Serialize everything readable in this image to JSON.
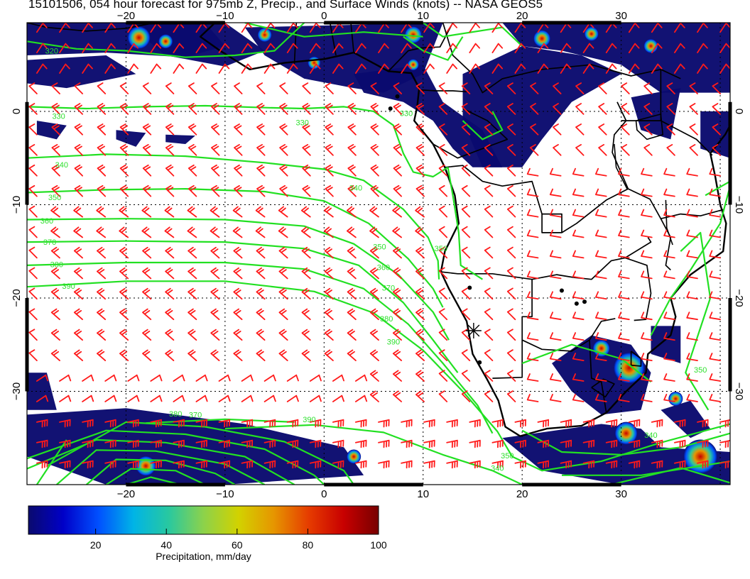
{
  "title": "15101506, 054 hour forecast for 975mb Z, Precip., and Surface Winds (knots) -- NASA GEOS5",
  "map": {
    "lon_range": [
      -30,
      41
    ],
    "lat_range": [
      -40,
      9.5
    ],
    "lon_ticks": [
      -20,
      -10,
      0,
      10,
      20,
      30
    ],
    "lon_tick_labels": [
      "−20",
      "−10",
      "0",
      "10",
      "20",
      "30"
    ],
    "lat_ticks": [
      0,
      -10,
      -20,
      -30
    ],
    "lat_tick_labels": [
      "0",
      "−10",
      "−20",
      "−30"
    ],
    "grid": true,
    "marker": {
      "name": "station-marker",
      "lon": 15.1,
      "lat": -23.5
    },
    "contour_labels": [
      {
        "text": "320",
        "lon": -27.5,
        "lat": 6.2
      },
      {
        "text": "330",
        "lon": -26.8,
        "lat": -0.8
      },
      {
        "text": "330",
        "lon": -2.2,
        "lat": -1.5
      },
      {
        "text": "330",
        "lon": 8.3,
        "lat": -0.5
      },
      {
        "text": "340",
        "lon": -26.5,
        "lat": -6.0
      },
      {
        "text": "340",
        "lon": 3.2,
        "lat": -8.5
      },
      {
        "text": "350",
        "lon": -27.2,
        "lat": -9.5
      },
      {
        "text": "350",
        "lon": 5.6,
        "lat": -14.8
      },
      {
        "text": "350",
        "lon": 11.8,
        "lat": -15.0
      },
      {
        "text": "360",
        "lon": -28.0,
        "lat": -12.0
      },
      {
        "text": "360",
        "lon": 6.0,
        "lat": -17.0
      },
      {
        "text": "370",
        "lon": -27.7,
        "lat": -14.3
      },
      {
        "text": "370",
        "lon": 6.5,
        "lat": -19.2
      },
      {
        "text": "380",
        "lon": -27.0,
        "lat": -16.7
      },
      {
        "text": "380",
        "lon": 6.3,
        "lat": -22.5
      },
      {
        "text": "390",
        "lon": -25.8,
        "lat": -19.0
      },
      {
        "text": "390",
        "lon": 7.0,
        "lat": -25.0
      },
      {
        "text": "390",
        "lon": -1.5,
        "lat": -33.3
      },
      {
        "text": "380",
        "lon": -15.0,
        "lat": -32.7
      },
      {
        "text": "370",
        "lon": -13.0,
        "lat": -32.8
      },
      {
        "text": "350",
        "lon": 18.5,
        "lat": -37.2
      },
      {
        "text": "340",
        "lon": 17.5,
        "lat": -38.5
      },
      {
        "text": "340",
        "lon": 33.0,
        "lat": -35.0
      },
      {
        "text": "350",
        "lon": 38.0,
        "lat": -28.0
      }
    ]
  },
  "colorbar": {
    "title": "Precipitation, mm/day",
    "ticks": [
      20,
      40,
      60,
      80,
      100
    ],
    "range": [
      1,
      100
    ],
    "colors": [
      "#0a0a6e",
      "#0000c8",
      "#0050ff",
      "#00b4e6",
      "#28c8a0",
      "#8cd24b",
      "#d2d200",
      "#e69600",
      "#e63c00",
      "#c80000",
      "#780000"
    ]
  },
  "colors": {
    "contour": "#22e022",
    "wind_barb": "#ff1a1a",
    "coast": "#000000"
  }
}
